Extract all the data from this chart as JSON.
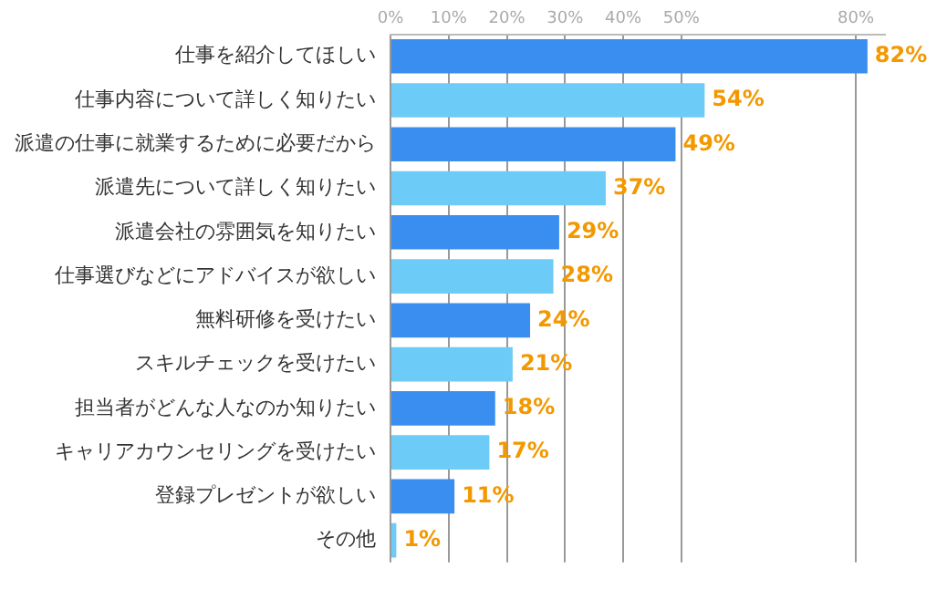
{
  "chart_data": {
    "type": "bar",
    "orientation": "horizontal",
    "categories": [
      "仕事を紹介してほしい",
      "仕事内容について詳しく知りたい",
      "派遣の仕事に就業するために必要だから",
      "派遣先について詳しく知りたい",
      "派遣会社の雰囲気を知りたい",
      "仕事選びなどにアドバイスが欲しい",
      "無料研修を受けたい",
      "スキルチェックを受けたい",
      "担当者がどんな人なのか知りたい",
      "キャリアカウンセリングを受けたい",
      "登録プレゼントが欲しい",
      "その他"
    ],
    "values": [
      82,
      54,
      49,
      37,
      29,
      28,
      24,
      21,
      18,
      17,
      11,
      1
    ],
    "colors": [
      "#3a8ef0",
      "#6ccbf7",
      "#3a8ef0",
      "#6ccbf7",
      "#3a8ef0",
      "#6ccbf7",
      "#3a8ef0",
      "#6ccbf7",
      "#3a8ef0",
      "#6ccbf7",
      "#3a8ef0",
      "#6ccbf7"
    ],
    "value_labels": [
      "82%",
      "54%",
      "49%",
      "37%",
      "29%",
      "28%",
      "24%",
      "21%",
      "18%",
      "17%",
      "11%",
      "1%"
    ],
    "xlim": [
      0,
      85
    ],
    "xticks": [
      {
        "value": 0,
        "label": "0%"
      },
      {
        "value": 10,
        "label": "10%"
      },
      {
        "value": 20,
        "label": "20%"
      },
      {
        "value": 30,
        "label": "30%"
      },
      {
        "value": 40,
        "label": "40%"
      },
      {
        "value": 50,
        "label": "50%"
      },
      {
        "value": 80,
        "label": "80%"
      }
    ],
    "grid": "x",
    "legend": false
  }
}
